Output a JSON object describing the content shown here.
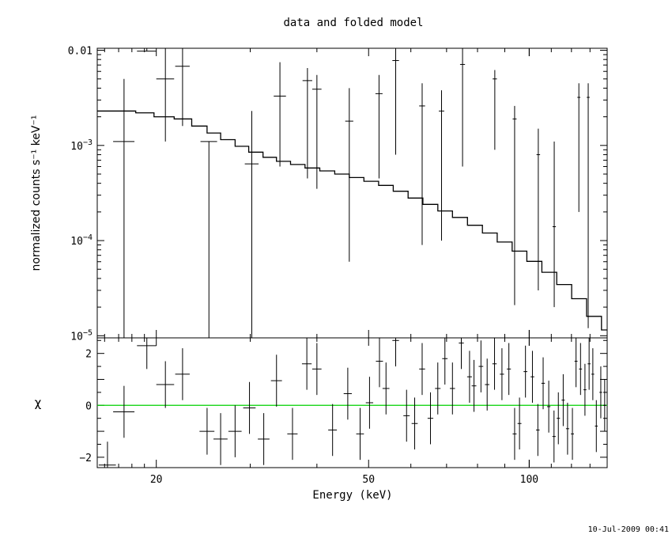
{
  "chart_data": [
    {
      "type": "scatter",
      "title": "data and folded model",
      "xlabel": "Energy (keV)",
      "ylabel": "normalized counts s⁻¹ keV⁻¹",
      "xscale": "log",
      "yscale": "log",
      "xlim": [
        15.5,
        140
      ],
      "ylim": [
        9.5e-06,
        0.0105
      ],
      "x_ticks": [
        20,
        50,
        100
      ],
      "y_ticks": [
        {
          "value": 0.01,
          "label": "0.01"
        },
        {
          "value": 0.001,
          "base": "10",
          "exp": "−3"
        },
        {
          "value": 0.0001,
          "base": "10",
          "exp": "−4"
        },
        {
          "value": 1e-05,
          "base": "10",
          "exp": "−5"
        }
      ],
      "grid": false,
      "legend": "none",
      "data_points": [
        {
          "x": 17.4,
          "xerr": 0.8,
          "y": 0.0011,
          "ylo": 9.5e-06,
          "yhi": 0.005
        },
        {
          "x": 19.2,
          "xerr": 0.8,
          "y": 0.0098,
          "ylo": 0.0098,
          "yhi": 0.0105
        },
        {
          "x": 20.8,
          "xerr": 0.8,
          "y": 0.005,
          "ylo": 0.0011,
          "yhi": 0.0105
        },
        {
          "x": 22.4,
          "xerr": 0.7,
          "y": 0.0068,
          "ylo": 0.0016,
          "yhi": 0.0105
        },
        {
          "x": 25.1,
          "xerr": 0.9,
          "y": 0.0011,
          "ylo": 9.5e-06,
          "yhi": 0.0011
        },
        {
          "x": 30.2,
          "xerr": 0.9,
          "y": 0.00064,
          "ylo": 9.5e-06,
          "yhi": 0.0023
        },
        {
          "x": 34.1,
          "xerr": 0.9,
          "y": 0.0033,
          "ylo": 0.0006,
          "yhi": 0.0075
        },
        {
          "x": 38.4,
          "xerr": 0.8,
          "y": 0.0048,
          "ylo": 0.00045,
          "yhi": 0.0065
        },
        {
          "x": 40.0,
          "xerr": 0.8,
          "y": 0.0039,
          "ylo": 0.00035,
          "yhi": 0.0055
        },
        {
          "x": 46.0,
          "xerr": 0.8,
          "y": 0.0018,
          "ylo": 6e-05,
          "yhi": 0.004
        },
        {
          "x": 52.3,
          "xerr": 0.8,
          "y": 0.0035,
          "ylo": 0.00045,
          "yhi": 0.0055
        },
        {
          "x": 56.2,
          "xerr": 0.8,
          "y": 0.0078,
          "ylo": 0.0008,
          "yhi": 0.0105
        },
        {
          "x": 63.0,
          "xerr": 0.8,
          "y": 0.0026,
          "ylo": 9e-05,
          "yhi": 0.0045
        },
        {
          "x": 68.5,
          "xerr": 0.8,
          "y": 0.0023,
          "ylo": 0.0001,
          "yhi": 0.0038
        },
        {
          "x": 75.0,
          "xerr": 0.8,
          "y": 0.0071,
          "ylo": 0.0006,
          "yhi": 0.0105
        },
        {
          "x": 86.2,
          "xerr": 0.8,
          "y": 0.005,
          "ylo": 0.0009,
          "yhi": 0.0062
        },
        {
          "x": 93.9,
          "xerr": 0.8,
          "y": 0.0019,
          "ylo": 2.1e-05,
          "yhi": 0.0026
        },
        {
          "x": 104.0,
          "xerr": 0.8,
          "y": 0.0008,
          "ylo": 3e-05,
          "yhi": 0.0015
        },
        {
          "x": 111.4,
          "xerr": 0.8,
          "y": 0.00014,
          "ylo": 2e-05,
          "yhi": 0.0011
        },
        {
          "x": 123.9,
          "xerr": 0.8,
          "y": 0.0032,
          "ylo": 0.0002,
          "yhi": 0.0045
        },
        {
          "x": 129.0,
          "xerr": 0.8,
          "y": 0.0032,
          "ylo": 1.2e-05,
          "yhi": 0.0045
        }
      ],
      "model_step": [
        {
          "x0": 15.5,
          "x1": 18.3,
          "y": 0.0023
        },
        {
          "x0": 18.3,
          "x1": 19.8,
          "y": 0.0022
        },
        {
          "x0": 19.8,
          "x1": 21.6,
          "y": 0.002
        },
        {
          "x0": 21.6,
          "x1": 23.3,
          "y": 0.0019
        },
        {
          "x0": 23.3,
          "x1": 24.9,
          "y": 0.0016
        },
        {
          "x0": 24.9,
          "x1": 26.4,
          "y": 0.00135
        },
        {
          "x0": 26.4,
          "x1": 28.1,
          "y": 0.00115
        },
        {
          "x0": 28.1,
          "x1": 29.8,
          "y": 0.00098
        },
        {
          "x0": 29.8,
          "x1": 31.7,
          "y": 0.00085
        },
        {
          "x0": 31.7,
          "x1": 33.6,
          "y": 0.00075
        },
        {
          "x0": 33.6,
          "x1": 35.7,
          "y": 0.00068
        },
        {
          "x0": 35.7,
          "x1": 38.0,
          "y": 0.00063
        },
        {
          "x0": 38.0,
          "x1": 40.5,
          "y": 0.00058
        },
        {
          "x0": 40.5,
          "x1": 43.2,
          "y": 0.00054
        },
        {
          "x0": 43.2,
          "x1": 46.0,
          "y": 0.0005
        },
        {
          "x0": 46.0,
          "x1": 49.0,
          "y": 0.00046
        },
        {
          "x0": 49.0,
          "x1": 52.2,
          "y": 0.00042
        },
        {
          "x0": 52.2,
          "x1": 55.6,
          "y": 0.00038
        },
        {
          "x0": 55.6,
          "x1": 59.3,
          "y": 0.00033
        },
        {
          "x0": 59.3,
          "x1": 63.2,
          "y": 0.00028
        },
        {
          "x0": 63.2,
          "x1": 67.4,
          "y": 0.00024
        },
        {
          "x0": 67.4,
          "x1": 71.8,
          "y": 0.000205
        },
        {
          "x0": 71.8,
          "x1": 76.6,
          "y": 0.000175
        },
        {
          "x0": 76.6,
          "x1": 81.7,
          "y": 0.000145
        },
        {
          "x0": 81.7,
          "x1": 87.1,
          "y": 0.00012
        },
        {
          "x0": 87.1,
          "x1": 92.9,
          "y": 9.65e-05
        },
        {
          "x0": 92.9,
          "x1": 99.0,
          "y": 7.75e-05
        },
        {
          "x0": 99.0,
          "x1": 105.6,
          "y": 6.05e-05
        },
        {
          "x0": 105.6,
          "x1": 112.6,
          "y": 4.65e-05
        },
        {
          "x0": 112.6,
          "x1": 120.1,
          "y": 3.45e-05
        },
        {
          "x0": 120.1,
          "x1": 128.1,
          "y": 2.45e-05
        },
        {
          "x0": 128.1,
          "x1": 136.6,
          "y": 1.6e-05
        },
        {
          "x0": 136.6,
          "x1": 140.0,
          "y": 1.15e-05
        }
      ]
    },
    {
      "type": "scatter",
      "xlabel": "Energy (keV)",
      "ylabel": "χ",
      "xscale": "log",
      "xlim": [
        15.5,
        140
      ],
      "ylim": [
        -2.4,
        2.6
      ],
      "x_ticks": [
        20,
        50,
        100
      ],
      "y_ticks": [
        2,
        0,
        -2
      ],
      "reference_line": {
        "y": 0,
        "color": "#00d000"
      },
      "data_points": [
        {
          "x": 16.2,
          "xerr": 0.6,
          "y": -2.3,
          "yerr": 0.9
        },
        {
          "x": 17.4,
          "xerr": 0.8,
          "y": -0.25,
          "yerr": 1.0
        },
        {
          "x": 19.2,
          "xerr": 0.8,
          "y": 2.3,
          "yerr": 0.9
        },
        {
          "x": 20.8,
          "xerr": 0.8,
          "y": 0.8,
          "yerr": 0.9
        },
        {
          "x": 22.4,
          "xerr": 0.7,
          "y": 1.2,
          "yerr": 1.0
        },
        {
          "x": 24.9,
          "xerr": 0.8,
          "y": -1.0,
          "yerr": 0.9
        },
        {
          "x": 26.4,
          "xerr": 0.8,
          "y": -1.3,
          "yerr": 1.0
        },
        {
          "x": 28.1,
          "xerr": 0.8,
          "y": -1.0,
          "yerr": 1.0
        },
        {
          "x": 29.9,
          "xerr": 0.8,
          "y": -0.1,
          "yerr": 1.0
        },
        {
          "x": 31.8,
          "xerr": 0.8,
          "y": -1.3,
          "yerr": 1.0
        },
        {
          "x": 33.6,
          "xerr": 0.8,
          "y": 0.95,
          "yerr": 1.0
        },
        {
          "x": 36.0,
          "xerr": 0.8,
          "y": -1.1,
          "yerr": 1.0
        },
        {
          "x": 38.3,
          "xerr": 0.8,
          "y": 1.6,
          "yerr": 1.0
        },
        {
          "x": 40.0,
          "xerr": 0.8,
          "y": 1.4,
          "yerr": 1.0
        },
        {
          "x": 42.8,
          "xerr": 0.8,
          "y": -0.95,
          "yerr": 1.0
        },
        {
          "x": 45.7,
          "xerr": 0.8,
          "y": 0.45,
          "yerr": 1.0
        },
        {
          "x": 48.2,
          "xerr": 0.8,
          "y": -1.1,
          "yerr": 1.0
        },
        {
          "x": 50.2,
          "xerr": 0.8,
          "y": 0.1,
          "yerr": 1.0
        },
        {
          "x": 52.4,
          "xerr": 0.8,
          "y": 1.7,
          "yerr": 1.0
        },
        {
          "x": 53.9,
          "xerr": 0.8,
          "y": 0.65,
          "yerr": 1.0
        },
        {
          "x": 56.2,
          "xerr": 0.8,
          "y": 2.5,
          "yerr": 1.0
        },
        {
          "x": 58.9,
          "xerr": 0.8,
          "y": -0.4,
          "yerr": 1.0
        },
        {
          "x": 61.0,
          "xerr": 0.8,
          "y": -0.7,
          "yerr": 1.0
        },
        {
          "x": 63.0,
          "xerr": 0.8,
          "y": 1.4,
          "yerr": 1.0
        },
        {
          "x": 65.3,
          "xerr": 0.8,
          "y": -0.5,
          "yerr": 1.0
        },
        {
          "x": 67.4,
          "xerr": 0.8,
          "y": 0.65,
          "yerr": 1.0
        },
        {
          "x": 69.5,
          "xerr": 0.8,
          "y": 1.8,
          "yerr": 1.0
        },
        {
          "x": 71.8,
          "xerr": 0.8,
          "y": 0.65,
          "yerr": 1.0
        },
        {
          "x": 74.6,
          "xerr": 0.8,
          "y": 2.4,
          "yerr": 1.0
        },
        {
          "x": 77.3,
          "xerr": 0.8,
          "y": 1.1,
          "yerr": 1.0
        },
        {
          "x": 78.8,
          "xerr": 0.8,
          "y": 0.75,
          "yerr": 1.0
        },
        {
          "x": 81.2,
          "xerr": 0.8,
          "y": 1.5,
          "yerr": 1.0
        },
        {
          "x": 83.4,
          "xerr": 0.8,
          "y": 0.8,
          "yerr": 1.0
        },
        {
          "x": 86.1,
          "xerr": 0.8,
          "y": 1.6,
          "yerr": 1.0
        },
        {
          "x": 88.9,
          "xerr": 0.8,
          "y": 1.2,
          "yerr": 1.0
        },
        {
          "x": 91.6,
          "xerr": 0.8,
          "y": 1.4,
          "yerr": 1.0
        },
        {
          "x": 93.9,
          "xerr": 0.8,
          "y": -1.1,
          "yerr": 1.0
        },
        {
          "x": 95.9,
          "xerr": 0.8,
          "y": -0.7,
          "yerr": 1.0
        },
        {
          "x": 98.4,
          "xerr": 0.8,
          "y": 1.3,
          "yerr": 1.0
        },
        {
          "x": 101.4,
          "xerr": 0.8,
          "y": 1.1,
          "yerr": 1.0
        },
        {
          "x": 103.8,
          "xerr": 0.8,
          "y": -0.95,
          "yerr": 1.0
        },
        {
          "x": 106.2,
          "xerr": 0.8,
          "y": 0.85,
          "yerr": 1.0
        },
        {
          "x": 108.8,
          "xerr": 0.8,
          "y": -0.05,
          "yerr": 1.0
        },
        {
          "x": 111.3,
          "xerr": 0.8,
          "y": -1.2,
          "yerr": 1.0
        },
        {
          "x": 113.4,
          "xerr": 0.8,
          "y": -0.5,
          "yerr": 1.0
        },
        {
          "x": 115.8,
          "xerr": 0.8,
          "y": 0.2,
          "yerr": 1.0
        },
        {
          "x": 118.0,
          "xerr": 0.8,
          "y": -0.9,
          "yerr": 1.0
        },
        {
          "x": 120.5,
          "xerr": 0.8,
          "y": -1.1,
          "yerr": 1.0
        },
        {
          "x": 122.4,
          "xerr": 0.8,
          "y": 1.7,
          "yerr": 1.0
        },
        {
          "x": 124.8,
          "xerr": 0.8,
          "y": 1.4,
          "yerr": 1.0
        },
        {
          "x": 127.2,
          "xerr": 0.8,
          "y": 0.6,
          "yerr": 1.0
        },
        {
          "x": 129.5,
          "xerr": 0.8,
          "y": 1.6,
          "yerr": 1.0
        },
        {
          "x": 131.6,
          "xerr": 0.8,
          "y": 1.2,
          "yerr": 1.0
        },
        {
          "x": 133.6,
          "xerr": 0.8,
          "y": -0.8,
          "yerr": 1.0
        },
        {
          "x": 136.2,
          "xerr": 0.8,
          "y": 0.5,
          "yerr": 1.0
        },
        {
          "x": 138.5,
          "xerr": 0.8,
          "y": 0.0,
          "yerr": 1.0
        }
      ]
    }
  ],
  "timestamp": "10-Jul-2009 00:41"
}
